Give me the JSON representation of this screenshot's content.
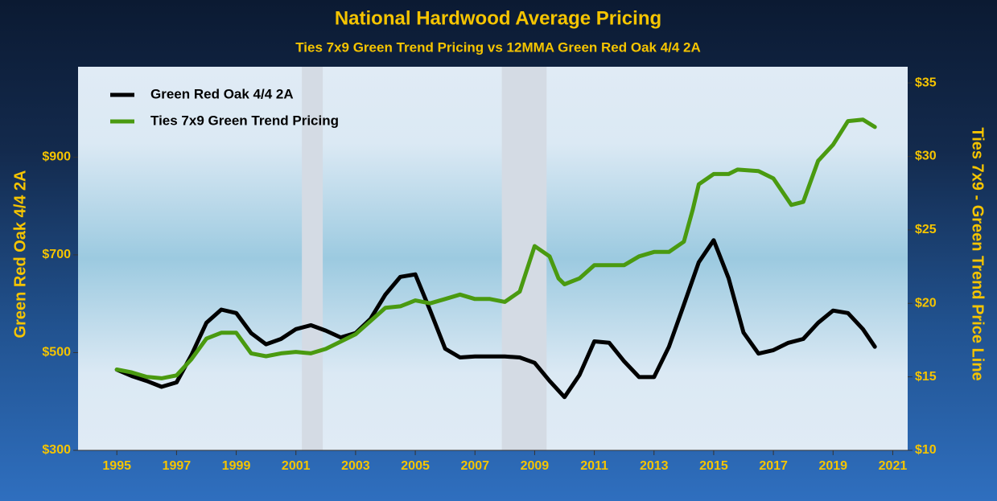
{
  "chart_data": {
    "type": "line",
    "title": "National Hardwood Average Pricing",
    "subtitle": "Ties 7x9 Green Trend Pricing vs 12MMA Green Red Oak 4/4 2A",
    "ylabel": "Green Red Oak 4/4 2A",
    "y2label": "Ties 7x9 - Green Trend Price Line",
    "xlim": [
      1993.7,
      2021.5
    ],
    "xticks": [
      1995,
      1997,
      1999,
      2001,
      2003,
      2005,
      2007,
      2009,
      2011,
      2013,
      2015,
      2017,
      2019,
      2021
    ],
    "ylim": [
      300,
      1085
    ],
    "yticks": [
      {
        "value": 300,
        "label": "$300"
      },
      {
        "value": 500,
        "label": "$500"
      },
      {
        "value": 700,
        "label": "$700"
      },
      {
        "value": 900,
        "label": "$900"
      }
    ],
    "y2lim": [
      10,
      36.1
    ],
    "y2ticks": [
      {
        "value": 10,
        "label": "$10"
      },
      {
        "value": 15,
        "label": "$15"
      },
      {
        "value": 20,
        "label": "$20"
      },
      {
        "value": 25,
        "label": "$25"
      },
      {
        "value": 30,
        "label": "$30"
      },
      {
        "value": 35,
        "label": "$35"
      }
    ],
    "shaded_periods": [
      [
        2001.2,
        2001.9
      ],
      [
        2007.9,
        2009.4
      ]
    ],
    "legend": "top-left",
    "series": [
      {
        "name": "Green Red Oak 4/4 2A",
        "color": "#000000",
        "axis": "y",
        "x": [
          1995,
          1995.5,
          1996,
          1996.5,
          1997,
          1997.5,
          1998,
          1998.5,
          1999,
          1999.5,
          2000,
          2000.5,
          2001,
          2001.5,
          2002,
          2002.5,
          2003,
          2003.5,
          2004,
          2004.5,
          2005,
          2005.5,
          2006,
          2006.5,
          2007,
          2008,
          2008.5,
          2009,
          2009.5,
          2010,
          2010.5,
          2011,
          2011.5,
          2012,
          2012.5,
          2013,
          2013.5,
          2014,
          2014.5,
          2015,
          2015.5,
          2016,
          2016.5,
          2017,
          2017.5,
          2018,
          2018.5,
          2019,
          2019.5,
          2020,
          2020.4
        ],
        "values": [
          465,
          452,
          442,
          430,
          439,
          495,
          561,
          588,
          581,
          540,
          517,
          528,
          548,
          556,
          545,
          531,
          540,
          569,
          619,
          655,
          660,
          586,
          508,
          490,
          492,
          492,
          490,
          479,
          442,
          409,
          454,
          523,
          520,
          482,
          450,
          450,
          512,
          598,
          685,
          730,
          652,
          541,
          498,
          505,
          520,
          528,
          561,
          586,
          581,
          548,
          512
        ]
      },
      {
        "name": "Ties 7x9 Green Trend Pricing",
        "color": "#4a9a10",
        "axis": "y2",
        "x": [
          1995,
          1995.5,
          1996,
          1996.5,
          1997,
          1997.5,
          1998,
          1998.5,
          1999,
          1999.5,
          2000,
          2000.5,
          2001,
          2001.5,
          2002,
          2002.5,
          2003,
          2003.5,
          2004,
          2004.5,
          2005,
          2005.5,
          2006,
          2006.5,
          2007,
          2007.5,
          2008,
          2008.5,
          2009,
          2009.5,
          2009.8,
          2010,
          2010.5,
          2011,
          2011.5,
          2012,
          2012.5,
          2013,
          2013.5,
          2014,
          2014.3,
          2014.5,
          2015,
          2015.5,
          2015.8,
          2016.5,
          2017,
          2017.6,
          2018,
          2018.5,
          2019,
          2019.5,
          2020,
          2020.4
        ],
        "values": [
          15.5,
          15.3,
          15.0,
          14.9,
          15.1,
          16.2,
          17.6,
          18.0,
          18.0,
          16.6,
          16.4,
          16.6,
          16.7,
          16.6,
          16.9,
          17.4,
          17.9,
          18.8,
          19.7,
          19.8,
          20.2,
          20.0,
          20.3,
          20.6,
          20.3,
          20.3,
          20.1,
          20.8,
          23.9,
          23.2,
          21.7,
          21.3,
          21.7,
          22.6,
          22.6,
          22.6,
          23.2,
          23.5,
          23.5,
          24.2,
          26.4,
          28.1,
          28.8,
          28.8,
          29.1,
          29.0,
          28.5,
          26.7,
          26.9,
          29.7,
          30.8,
          32.4,
          32.5,
          32.0
        ]
      }
    ]
  }
}
